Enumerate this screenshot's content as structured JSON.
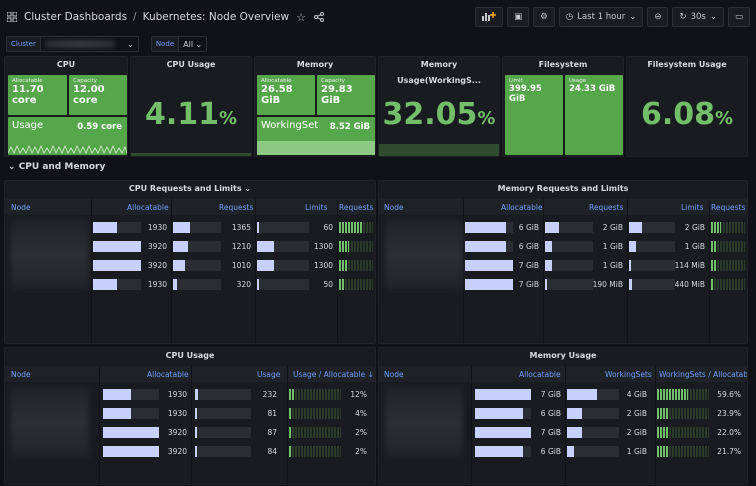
{
  "header": {
    "breadcrumb_root": "Cluster Dashboards",
    "breadcrumb_sep": "/",
    "title": "Kubernetes: Node Overview",
    "time_range": "Last 1 hour",
    "refresh": "30s"
  },
  "vars": {
    "cluster_label": "Cluster",
    "node_label": "Node",
    "node_value": "All"
  },
  "stats": {
    "cpu": {
      "title": "CPU",
      "allocatable_label": "Allocatable",
      "allocatable": "11.70 core",
      "capacity_label": "Capacity",
      "capacity": "12.00 core",
      "usage_label": "Usage",
      "usage": "0.59 core"
    },
    "cpu_usage": {
      "title": "CPU Usage",
      "value": "4.11",
      "unit": "%"
    },
    "memory": {
      "title": "Memory",
      "allocatable_label": "Allocatable",
      "allocatable": "26.58 GiB",
      "capacity_label": "Capacity",
      "capacity": "29.83 GiB",
      "ws_label": "WorkingSet",
      "ws": "8.52 GiB"
    },
    "memory_usage": {
      "title": "Memory Usage(WorkingS...",
      "value": "32.05",
      "unit": "%"
    },
    "filesystem": {
      "title": "Filesystem",
      "limit_label": "Limit",
      "limit": "399.95 GiB",
      "usage_label": "Usage",
      "usage": "24.33 GiB"
    },
    "fs_usage": {
      "title": "Filesystem Usage",
      "value": "6.08",
      "unit": "%"
    }
  },
  "row_title": "CPU and Memory",
  "cpu_req": {
    "title": "CPU Requests and Limits",
    "cols": [
      "Node",
      "Allocatable",
      "Requests",
      "Limits",
      "Requests /"
    ],
    "rows": [
      {
        "alloc": "1930",
        "alloc_frac": 0.5,
        "req": "1365",
        "req_frac": 0.35,
        "lim": "60",
        "lim_frac": 0.02,
        "ratio_frac": 0.7
      },
      {
        "alloc": "3920",
        "alloc_frac": 1.0,
        "req": "1210",
        "req_frac": 0.31,
        "lim": "1300",
        "lim_frac": 0.33,
        "ratio_frac": 0.3
      },
      {
        "alloc": "3920",
        "alloc_frac": 1.0,
        "req": "1010",
        "req_frac": 0.26,
        "lim": "1300",
        "lim_frac": 0.33,
        "ratio_frac": 0.25
      },
      {
        "alloc": "1930",
        "alloc_frac": 0.5,
        "req": "320",
        "req_frac": 0.08,
        "lim": "50",
        "lim_frac": 0.02,
        "ratio_frac": 0.15
      }
    ]
  },
  "mem_req": {
    "title": "Memory Requests and Limits",
    "cols": [
      "Node",
      "Allocatable",
      "Requests",
      "Limits",
      "Requests /"
    ],
    "rows": [
      {
        "alloc": "6 GiB",
        "alloc_frac": 0.86,
        "req": "2 GiB",
        "req_frac": 0.29,
        "lim": "2 GiB",
        "lim_frac": 0.29,
        "ratio_frac": 0.3
      },
      {
        "alloc": "6 GiB",
        "alloc_frac": 0.86,
        "req": "1 GiB",
        "req_frac": 0.15,
        "lim": "1 GiB",
        "lim_frac": 0.15,
        "ratio_frac": 0.15
      },
      {
        "alloc": "7 GiB",
        "alloc_frac": 1.0,
        "req": "1 GiB",
        "req_frac": 0.15,
        "lim": "114 MiB",
        "lim_frac": 0.02,
        "ratio_frac": 0.15
      },
      {
        "alloc": "7 GiB",
        "alloc_frac": 1.0,
        "req": "190 MiB",
        "req_frac": 0.03,
        "lim": "440 MiB",
        "lim_frac": 0.06,
        "ratio_frac": 0.05
      }
    ]
  },
  "cpu_usage_tbl": {
    "title": "CPU Usage",
    "cols": [
      "Node",
      "Allocatable",
      "Usage",
      "Usage / Allocatable ↓"
    ],
    "rows": [
      {
        "alloc": "1930",
        "alloc_frac": 0.5,
        "usage": "232",
        "usage_frac": 0.06,
        "pct": "12%",
        "pct_frac": 0.12
      },
      {
        "alloc": "1930",
        "alloc_frac": 0.5,
        "usage": "81",
        "usage_frac": 0.02,
        "pct": "4%",
        "pct_frac": 0.04
      },
      {
        "alloc": "3920",
        "alloc_frac": 1.0,
        "usage": "87",
        "usage_frac": 0.02,
        "pct": "2%",
        "pct_frac": 0.02
      },
      {
        "alloc": "3920",
        "alloc_frac": 1.0,
        "usage": "84",
        "usage_frac": 0.02,
        "pct": "2%",
        "pct_frac": 0.02
      }
    ]
  },
  "mem_usage_tbl": {
    "title": "Memory Usage",
    "cols": [
      "Node",
      "Allocatable",
      "WorkingSets",
      "WorkingSets / Allocatab"
    ],
    "rows": [
      {
        "alloc": "7 GiB",
        "alloc_frac": 1.0,
        "usage": "4 GiB",
        "usage_frac": 0.57,
        "pct": "59.6%",
        "pct_frac": 0.6
      },
      {
        "alloc": "6 GiB",
        "alloc_frac": 0.86,
        "usage": "2 GiB",
        "usage_frac": 0.29,
        "pct": "23.9%",
        "pct_frac": 0.24
      },
      {
        "alloc": "7 GiB",
        "alloc_frac": 1.0,
        "usage": "2 GiB",
        "usage_frac": 0.29,
        "pct": "22.0%",
        "pct_frac": 0.22
      },
      {
        "alloc": "6 GiB",
        "alloc_frac": 0.86,
        "usage": "1 GiB",
        "usage_frac": 0.14,
        "pct": "21.7%",
        "pct_frac": 0.22
      }
    ]
  }
}
